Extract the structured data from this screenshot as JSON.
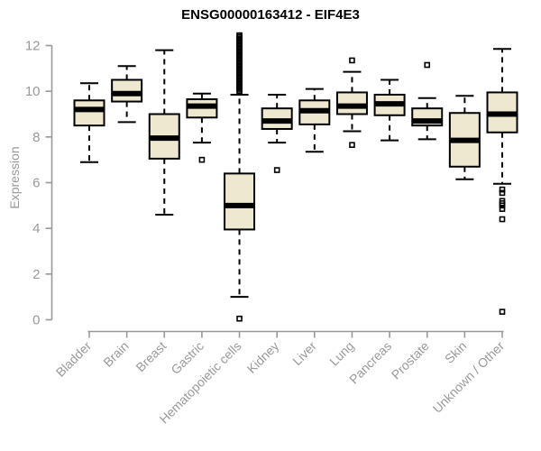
{
  "chart_data": {
    "type": "boxplot",
    "title": "ENSG00000163412 - EIF4E3",
    "ylabel": "Expression",
    "xlabel": "",
    "ylim": [
      0,
      12
    ],
    "yticks": [
      0,
      2,
      4,
      6,
      8,
      10,
      12
    ],
    "grid": false,
    "legend": "none",
    "categories": [
      "Bladder",
      "Brain",
      "Breast",
      "Gastric",
      "Hematopoietic cells",
      "Kidney",
      "Liver",
      "Lung",
      "Pancreas",
      "Prostate",
      "Skin",
      "Unknown / Other"
    ],
    "series": [
      {
        "name": "Bladder",
        "whisker_low": 6.9,
        "q1": 8.5,
        "median": 9.2,
        "q3": 9.6,
        "whisker_high": 10.35,
        "outliers": []
      },
      {
        "name": "Brain",
        "whisker_low": 8.65,
        "q1": 9.55,
        "median": 9.9,
        "q3": 10.5,
        "whisker_high": 11.1,
        "outliers": []
      },
      {
        "name": "Breast",
        "whisker_low": 4.6,
        "q1": 7.05,
        "median": 7.95,
        "q3": 9.0,
        "whisker_high": 11.8,
        "outliers": []
      },
      {
        "name": "Gastric",
        "whisker_low": 7.75,
        "q1": 8.85,
        "median": 9.35,
        "q3": 9.65,
        "whisker_high": 9.9,
        "outliers": [
          7.0
        ]
      },
      {
        "name": "Hematopoietic cells",
        "whisker_low": 1.0,
        "q1": 3.95,
        "median": 5.0,
        "q3": 6.4,
        "whisker_high": 9.85,
        "outliers": [
          0.05,
          10.0,
          10.07,
          10.14,
          10.21,
          10.28,
          10.35,
          10.42,
          10.49,
          10.56,
          10.63,
          10.7,
          10.77,
          10.84,
          10.91,
          10.98,
          11.05,
          11.12,
          11.19,
          11.26,
          11.33,
          11.4,
          11.47,
          11.54,
          11.61,
          11.68,
          11.75,
          11.82,
          11.89,
          11.96,
          12.03,
          12.1,
          12.17,
          12.24,
          12.31,
          12.38,
          12.45
        ]
      },
      {
        "name": "Kidney",
        "whisker_low": 7.75,
        "q1": 8.35,
        "median": 8.7,
        "q3": 9.25,
        "whisker_high": 9.85,
        "outliers": [
          6.55
        ]
      },
      {
        "name": "Liver",
        "whisker_low": 7.35,
        "q1": 8.55,
        "median": 9.15,
        "q3": 9.6,
        "whisker_high": 10.1,
        "outliers": []
      },
      {
        "name": "Lung",
        "whisker_low": 8.25,
        "q1": 9.0,
        "median": 9.35,
        "q3": 9.95,
        "whisker_high": 10.85,
        "outliers": [
          7.65,
          11.35
        ]
      },
      {
        "name": "Pancreas",
        "whisker_low": 7.85,
        "q1": 8.95,
        "median": 9.45,
        "q3": 9.85,
        "whisker_high": 10.5,
        "outliers": []
      },
      {
        "name": "Prostate",
        "whisker_low": 7.9,
        "q1": 8.5,
        "median": 8.7,
        "q3": 9.25,
        "whisker_high": 9.7,
        "outliers": [
          11.15
        ]
      },
      {
        "name": "Skin",
        "whisker_low": 6.15,
        "q1": 6.7,
        "median": 7.85,
        "q3": 9.05,
        "whisker_high": 9.8,
        "outliers": []
      },
      {
        "name": "Unknown / Other",
        "whisker_low": 5.95,
        "q1": 8.2,
        "median": 9.0,
        "q3": 9.95,
        "whisker_high": 11.85,
        "outliers": [
          5.7,
          5.55,
          5.2,
          5.1,
          5.0,
          4.85,
          4.4,
          0.35
        ]
      }
    ],
    "colors": {
      "box_fill": "#EDE8CF",
      "box_stroke": "#000000",
      "median": "#000000",
      "outlier": "#000000",
      "axis": "#999999",
      "background": "#FFFFFF"
    }
  }
}
